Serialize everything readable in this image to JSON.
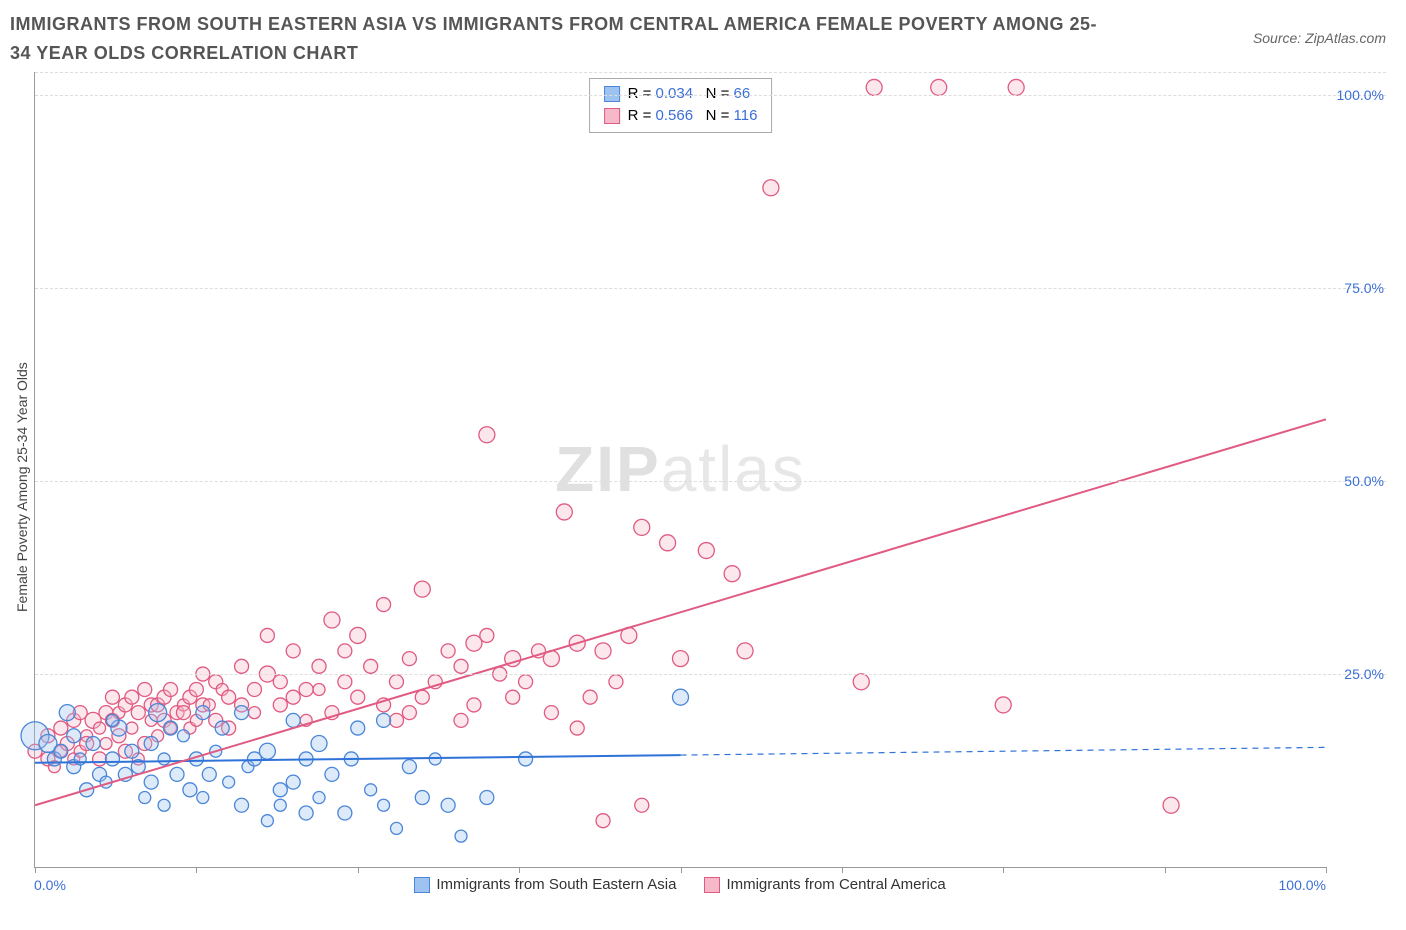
{
  "title": "IMMIGRANTS FROM SOUTH EASTERN ASIA VS IMMIGRANTS FROM CENTRAL AMERICA FEMALE POVERTY AMONG 25-34 YEAR OLDS CORRELATION CHART",
  "source_prefix": "Source: ",
  "source_name": "ZipAtlas.com",
  "yaxis_label": "Female Poverty Among 25-34 Year Olds",
  "watermark_bold": "ZIP",
  "watermark_light": "atlas",
  "chart": {
    "type": "scatter",
    "xlim": [
      0,
      100
    ],
    "ylim": [
      0,
      103
    ],
    "xticks": [
      0,
      12.5,
      25,
      37.5,
      50,
      62.5,
      75,
      87.5,
      100
    ],
    "xtick_labels": {
      "0": "0.0%",
      "100": "100.0%"
    },
    "yticks": [
      25,
      50,
      75,
      100
    ],
    "ytick_labels": [
      "25.0%",
      "50.0%",
      "75.0%",
      "100.0%"
    ],
    "background_color": "#ffffff",
    "grid_color": "#dddddd",
    "axis_color": "#999999",
    "tick_label_color": "#3b6fd6"
  },
  "series": [
    {
      "id": "sea",
      "label": "Immigrants from South Eastern Asia",
      "color_fill": "#9ec3f0",
      "color_stroke": "#4a86d8",
      "R": "0.034",
      "N": "66",
      "trend": {
        "x1": 0,
        "y1": 13.5,
        "x2": 50,
        "y2": 14.5,
        "x2_ext": 100,
        "y2_ext": 15.5,
        "width": 2,
        "color": "#2f72d8",
        "dash_after_data": true
      },
      "points": [
        [
          0,
          17,
          14
        ],
        [
          1,
          16,
          9
        ],
        [
          1.5,
          14,
          7
        ],
        [
          2,
          15,
          7
        ],
        [
          2.5,
          20,
          8
        ],
        [
          3,
          13,
          7
        ],
        [
          3,
          17,
          7
        ],
        [
          3.5,
          14,
          6
        ],
        [
          4,
          10,
          7
        ],
        [
          4.5,
          16,
          7
        ],
        [
          5,
          12,
          7
        ],
        [
          5.5,
          11,
          6
        ],
        [
          6,
          14,
          7
        ],
        [
          6.5,
          18,
          8
        ],
        [
          6,
          19,
          6
        ],
        [
          7,
          12,
          7
        ],
        [
          7.5,
          15,
          7
        ],
        [
          8,
          13,
          7
        ],
        [
          8.5,
          9,
          6
        ],
        [
          9,
          16,
          7
        ],
        [
          9,
          11,
          7
        ],
        [
          9.5,
          20,
          9
        ],
        [
          10,
          14,
          6
        ],
        [
          10,
          8,
          6
        ],
        [
          10.5,
          18,
          7
        ],
        [
          11,
          12,
          7
        ],
        [
          11.5,
          17,
          6
        ],
        [
          12,
          10,
          7
        ],
        [
          12.5,
          14,
          7
        ],
        [
          13,
          20,
          7
        ],
        [
          13,
          9,
          6
        ],
        [
          13.5,
          12,
          7
        ],
        [
          14,
          15,
          6
        ],
        [
          14.5,
          18,
          7
        ],
        [
          15,
          11,
          6
        ],
        [
          16,
          8,
          7
        ],
        [
          16,
          20,
          7
        ],
        [
          16.5,
          13,
          6
        ],
        [
          17,
          14,
          7
        ],
        [
          18,
          15,
          8
        ],
        [
          18,
          6,
          6
        ],
        [
          19,
          10,
          7
        ],
        [
          19,
          8,
          6
        ],
        [
          20,
          11,
          7
        ],
        [
          20,
          19,
          7
        ],
        [
          21,
          7,
          7
        ],
        [
          21,
          14,
          7
        ],
        [
          22,
          9,
          6
        ],
        [
          22,
          16,
          8
        ],
        [
          23,
          12,
          7
        ],
        [
          24,
          7,
          7
        ],
        [
          24.5,
          14,
          7
        ],
        [
          25,
          18,
          7
        ],
        [
          26,
          10,
          6
        ],
        [
          27,
          19,
          7
        ],
        [
          27,
          8,
          6
        ],
        [
          28,
          5,
          6
        ],
        [
          29,
          13,
          7
        ],
        [
          30,
          9,
          7
        ],
        [
          31,
          14,
          6
        ],
        [
          32,
          8,
          7
        ],
        [
          33,
          4,
          6
        ],
        [
          35,
          9,
          7
        ],
        [
          38,
          14,
          7
        ],
        [
          50,
          22,
          8
        ]
      ]
    },
    {
      "id": "ca",
      "label": "Immigrants from Central America",
      "color_fill": "#f6b9c9",
      "color_stroke": "#e05a82",
      "R": "0.566",
      "N": "116",
      "trend": {
        "x1": 0,
        "y1": 8,
        "x2": 100,
        "y2": 58,
        "width": 2,
        "color": "#e05a82",
        "dash_after_data": false
      },
      "points": [
        [
          0,
          15,
          7
        ],
        [
          1,
          14,
          7
        ],
        [
          1,
          17,
          7
        ],
        [
          1.5,
          13,
          6
        ],
        [
          2,
          15,
          6
        ],
        [
          2,
          18,
          7
        ],
        [
          2.5,
          16,
          7
        ],
        [
          3,
          14,
          6
        ],
        [
          3,
          19,
          7
        ],
        [
          3.5,
          20,
          7
        ],
        [
          3.5,
          15,
          6
        ],
        [
          4,
          17,
          6
        ],
        [
          4,
          16,
          7
        ],
        [
          4.5,
          19,
          8
        ],
        [
          5,
          14,
          7
        ],
        [
          5,
          18,
          6
        ],
        [
          5.5,
          20,
          7
        ],
        [
          5.5,
          16,
          6
        ],
        [
          6,
          19,
          7
        ],
        [
          6,
          22,
          7
        ],
        [
          6.5,
          17,
          7
        ],
        [
          6.5,
          20,
          6
        ],
        [
          7,
          15,
          7
        ],
        [
          7,
          21,
          7
        ],
        [
          7.5,
          22,
          7
        ],
        [
          7.5,
          18,
          6
        ],
        [
          8,
          20,
          7
        ],
        [
          8,
          14,
          6
        ],
        [
          8.5,
          16,
          7
        ],
        [
          8.5,
          23,
          7
        ],
        [
          9,
          19,
          6
        ],
        [
          9,
          21,
          7
        ],
        [
          9.5,
          21,
          7
        ],
        [
          9.5,
          17,
          6
        ],
        [
          10,
          22,
          7
        ],
        [
          10,
          19,
          7
        ],
        [
          10.5,
          18,
          6
        ],
        [
          10.5,
          23,
          7
        ],
        [
          11,
          20,
          7
        ],
        [
          11.5,
          21,
          6
        ],
        [
          11.5,
          20,
          7
        ],
        [
          12,
          22,
          7
        ],
        [
          12,
          18,
          6
        ],
        [
          12.5,
          23,
          7
        ],
        [
          12.5,
          19,
          6
        ],
        [
          13,
          25,
          7
        ],
        [
          13,
          21,
          7
        ],
        [
          13.5,
          21,
          6
        ],
        [
          14,
          19,
          7
        ],
        [
          14,
          24,
          7
        ],
        [
          14.5,
          23,
          6
        ],
        [
          15,
          18,
          7
        ],
        [
          15,
          22,
          7
        ],
        [
          16,
          21,
          7
        ],
        [
          16,
          26,
          7
        ],
        [
          17,
          23,
          7
        ],
        [
          17,
          20,
          6
        ],
        [
          18,
          25,
          8
        ],
        [
          18,
          30,
          7
        ],
        [
          19,
          21,
          7
        ],
        [
          19,
          24,
          7
        ],
        [
          20,
          22,
          7
        ],
        [
          20,
          28,
          7
        ],
        [
          21,
          23,
          7
        ],
        [
          21,
          19,
          6
        ],
        [
          22,
          26,
          7
        ],
        [
          22,
          23,
          6
        ],
        [
          23,
          20,
          7
        ],
        [
          23,
          32,
          8
        ],
        [
          24,
          24,
          7
        ],
        [
          24,
          28,
          7
        ],
        [
          25,
          30,
          8
        ],
        [
          25,
          22,
          7
        ],
        [
          26,
          26,
          7
        ],
        [
          27,
          21,
          7
        ],
        [
          27,
          34,
          7
        ],
        [
          28,
          19,
          7
        ],
        [
          28,
          24,
          7
        ],
        [
          29,
          27,
          7
        ],
        [
          29,
          20,
          7
        ],
        [
          30,
          22,
          7
        ],
        [
          30,
          36,
          8
        ],
        [
          31,
          24,
          7
        ],
        [
          32,
          28,
          7
        ],
        [
          33,
          26,
          7
        ],
        [
          33,
          19,
          7
        ],
        [
          34,
          29,
          8
        ],
        [
          34,
          21,
          7
        ],
        [
          35,
          30,
          7
        ],
        [
          35,
          56,
          8
        ],
        [
          36,
          25,
          7
        ],
        [
          37,
          22,
          7
        ],
        [
          37,
          27,
          8
        ],
        [
          38,
          24,
          7
        ],
        [
          39,
          28,
          7
        ],
        [
          40,
          27,
          8
        ],
        [
          40,
          20,
          7
        ],
        [
          41,
          46,
          8
        ],
        [
          42,
          29,
          8
        ],
        [
          42,
          18,
          7
        ],
        [
          43,
          22,
          7
        ],
        [
          44,
          28,
          8
        ],
        [
          44,
          6,
          7
        ],
        [
          45,
          24,
          7
        ],
        [
          46,
          30,
          8
        ],
        [
          47,
          44,
          8
        ],
        [
          47,
          8,
          7
        ],
        [
          49,
          42,
          8
        ],
        [
          50,
          27,
          8
        ],
        [
          52,
          41,
          8
        ],
        [
          54,
          38,
          8
        ],
        [
          55,
          28,
          8
        ],
        [
          64,
          24,
          8
        ],
        [
          57,
          88,
          8
        ],
        [
          65,
          101,
          8
        ],
        [
          70,
          101,
          8
        ],
        [
          76,
          101,
          8
        ],
        [
          75,
          21,
          8
        ],
        [
          88,
          8,
          8
        ]
      ]
    }
  ],
  "legend_bottom": [
    {
      "swatch_fill": "#9ec3f0",
      "swatch_stroke": "#4a86d8",
      "label": "Immigrants from South Eastern Asia"
    },
    {
      "swatch_fill": "#f6b9c9",
      "swatch_stroke": "#e05a82",
      "label": "Immigrants from Central America"
    }
  ],
  "stats_labels": {
    "R": "R =",
    "N": "N ="
  }
}
